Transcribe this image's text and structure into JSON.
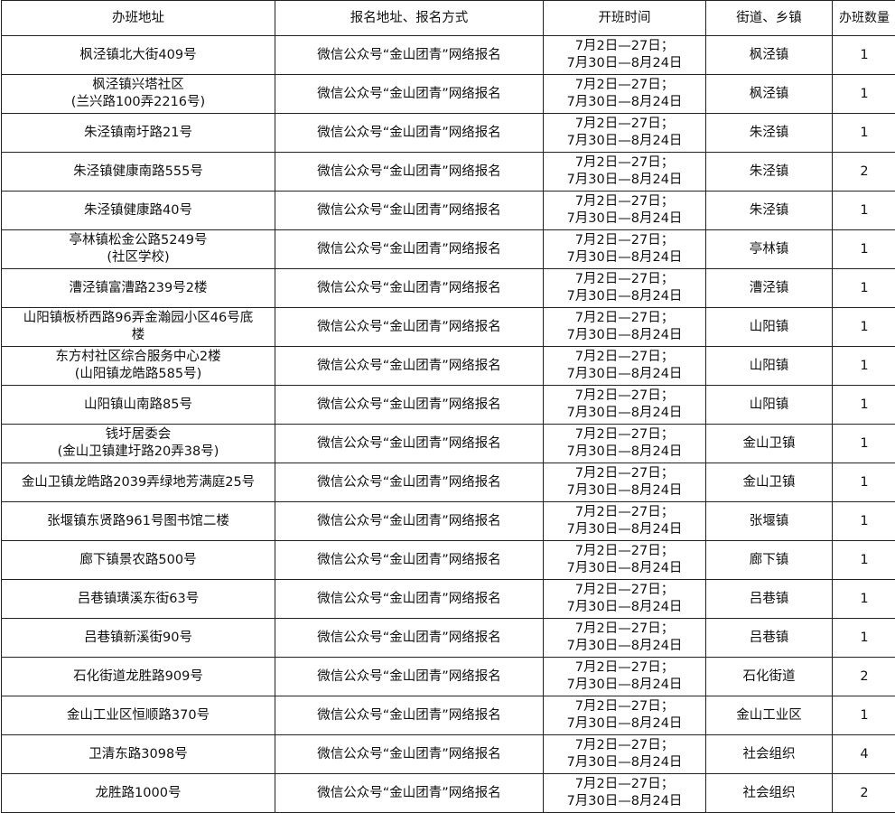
{
  "headers": [
    "办班地址",
    "报名地址、报名方式",
    "开班时间",
    "街道、乡镇",
    "办班数量"
  ],
  "rows": [
    {
      "address": [
        "枫泾镇北大街409号"
      ],
      "signup": "微信公众号“金山团青”网络报名",
      "time": [
        "7月2日—27日；",
        "7月30日—8月24日"
      ],
      "town": "枫泾镇",
      "count": "1"
    },
    {
      "address": [
        "枫泾镇兴塔社区",
        "(兰兴路100弄2216号)"
      ],
      "signup": "微信公众号“金山团青”网络报名",
      "time": [
        "7月2日—27日；",
        "7月30日—8月24日"
      ],
      "town": "枫泾镇",
      "count": "1"
    },
    {
      "address": [
        "朱泾镇南圩路21号"
      ],
      "signup": "微信公众号“金山团青”网络报名",
      "time": [
        "7月2日—27日；",
        "7月30日—8月24日"
      ],
      "town": "朱泾镇",
      "count": "1"
    },
    {
      "address": [
        "朱泾镇健康南路555号"
      ],
      "signup": "微信公众号“金山团青”网络报名",
      "time": [
        "7月2日—27日；",
        "7月30日—8月24日"
      ],
      "town": "朱泾镇",
      "count": "2"
    },
    {
      "address": [
        "朱泾镇健康路40号"
      ],
      "signup": "微信公众号“金山团青”网络报名",
      "time": [
        "7月2日—27日；",
        "7月30日—8月24日"
      ],
      "town": "朱泾镇",
      "count": "1"
    },
    {
      "address": [
        "亭林镇松金公路5249号",
        "(社区学校)"
      ],
      "signup": "微信公众号“金山团青”网络报名",
      "time": [
        "7月2日—27日；",
        "7月30日—8月24日"
      ],
      "town": "亭林镇",
      "count": "1"
    },
    {
      "address": [
        "漕泾镇富漕路239号2楼"
      ],
      "signup": "微信公众号“金山团青”网络报名",
      "time": [
        "7月2日—27日；",
        "7月30日—8月24日"
      ],
      "town": "漕泾镇",
      "count": "1"
    },
    {
      "address": [
        "山阳镇板桥西路96弄金瀚园小区46号底",
        "楼"
      ],
      "signup": "微信公众号“金山团青”网络报名",
      "time": [
        "7月2日—27日；",
        "7月30日—8月24日"
      ],
      "town": "山阳镇",
      "count": "1"
    },
    {
      "address": [
        "东方村社区综合服务中心2楼",
        "(山阳镇龙皓路585号)"
      ],
      "signup": "微信公众号“金山团青”网络报名",
      "time": [
        "7月2日—27日；",
        "7月30日—8月24日"
      ],
      "town": "山阳镇",
      "count": "1"
    },
    {
      "address": [
        "山阳镇山南路85号"
      ],
      "signup": "微信公众号“金山团青”网络报名",
      "time": [
        "7月2日—27日；",
        "7月30日—8月24日"
      ],
      "town": "山阳镇",
      "count": "1"
    },
    {
      "address": [
        "钱圩居委会",
        "(金山卫镇建圩路20弄38号)"
      ],
      "signup": "微信公众号“金山团青”网络报名",
      "time": [
        "7月2日—27日；",
        "7月30日—8月24日"
      ],
      "town": "金山卫镇",
      "count": "1"
    },
    {
      "address": [
        "金山卫镇龙皓路2039弄绿地芳满庭25号"
      ],
      "signup": "微信公众号“金山团青”网络报名",
      "time": [
        "7月2日—27日；",
        "7月30日—8月24日"
      ],
      "town": "金山卫镇",
      "count": "1"
    },
    {
      "address": [
        "张堰镇东贤路961号图书馆二楼"
      ],
      "signup": "微信公众号“金山团青”网络报名",
      "time": [
        "7月2日—27日；",
        "7月30日—8月24日"
      ],
      "town": "张堰镇",
      "count": "1"
    },
    {
      "address": [
        "廊下镇景农路500号"
      ],
      "signup": "微信公众号“金山团青”网络报名",
      "time": [
        "7月2日—27日；",
        "7月30日—8月24日"
      ],
      "town": "廊下镇",
      "count": "1"
    },
    {
      "address": [
        "吕巷镇璜溪东街63号"
      ],
      "signup": "微信公众号“金山团青”网络报名",
      "time": [
        "7月2日—27日；",
        "7月30日—8月24日"
      ],
      "town": "吕巷镇",
      "count": "1"
    },
    {
      "address": [
        "吕巷镇新溪街90号"
      ],
      "signup": "微信公众号“金山团青”网络报名",
      "time": [
        "7月2日—27日；",
        "7月30日—8月24日"
      ],
      "town": "吕巷镇",
      "count": "1"
    },
    {
      "address": [
        "石化街道龙胜路909号"
      ],
      "signup": "微信公众号“金山团青”网络报名",
      "time": [
        "7月2日—27日；",
        "7月30日—8月24日"
      ],
      "town": "石化街道",
      "count": "2"
    },
    {
      "address": [
        "金山工业区恒顺路370号"
      ],
      "signup": "微信公众号“金山团青”网络报名",
      "time": [
        "7月2日—27日；",
        "7月30日—8月24日"
      ],
      "town": "金山工业区",
      "count": "1"
    },
    {
      "address": [
        "卫清东路3098号"
      ],
      "signup": "微信公众号“金山团青”网络报名",
      "time": [
        "7月2日—27日；",
        "7月30日—8月24日"
      ],
      "town": "社会组织",
      "count": "4"
    },
    {
      "address": [
        "龙胜路1000号"
      ],
      "signup": "微信公众号“金山团青”网络报名",
      "time": [
        "7月2日—27日；",
        "7月30日—8月24日"
      ],
      "town": "社会组织",
      "count": "2"
    }
  ]
}
